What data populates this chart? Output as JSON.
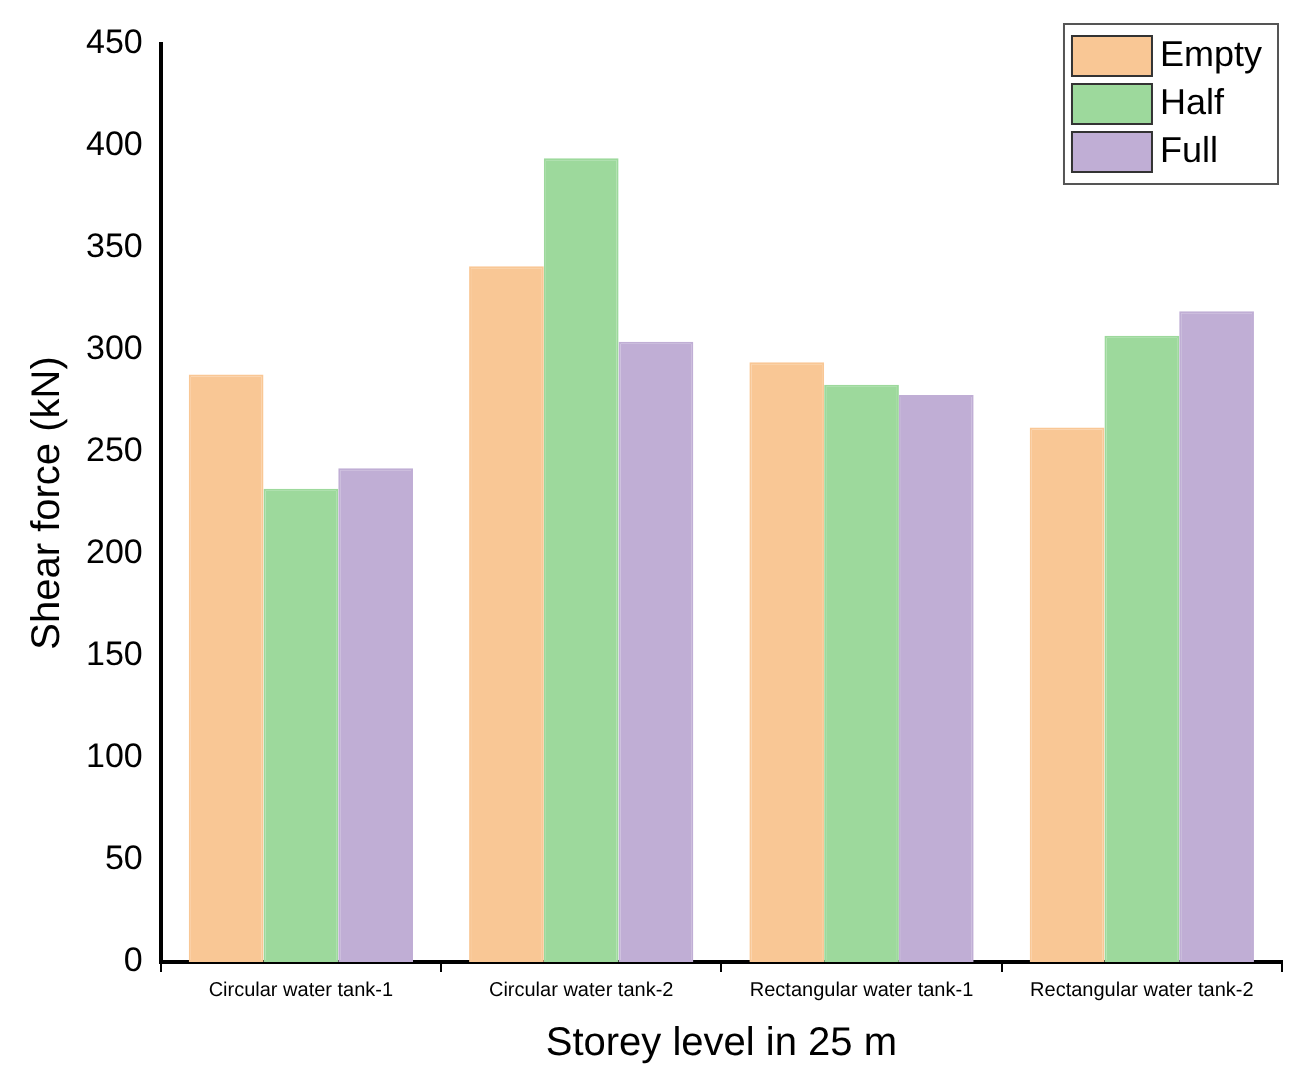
{
  "chart_data": {
    "type": "bar",
    "xlabel": "Storey level in 25 m",
    "ylabel": "Shear force (kN)",
    "categories": [
      "Circular water tank-1",
      "Circular water tank-2",
      "Rectangular water tank-1",
      "Rectangular water tank-2"
    ],
    "series": [
      {
        "name": "Empty",
        "color": "#f9c795",
        "values": [
          288,
          341,
          294,
          262
        ]
      },
      {
        "name": "Half",
        "color": "#9dd99c",
        "values": [
          232,
          394,
          283,
          307
        ]
      },
      {
        "name": "Full",
        "color": "#c0aed5",
        "values": [
          242,
          304,
          278,
          319
        ]
      }
    ],
    "ylim": [
      0,
      450
    ],
    "yticks": [
      0,
      50,
      100,
      150,
      200,
      250,
      300,
      350,
      400,
      450
    ],
    "grid": false,
    "legend": "top right"
  }
}
